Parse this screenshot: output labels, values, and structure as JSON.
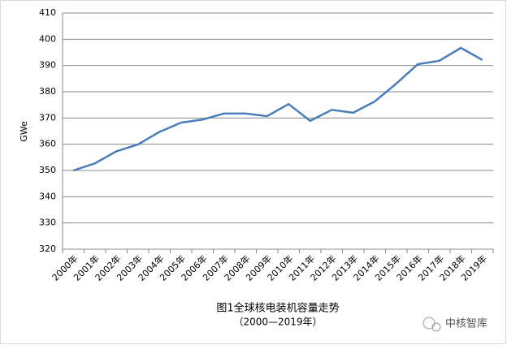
{
  "chart_data": {
    "type": "line",
    "title": "图1全球核电装机容量走势",
    "subtitle": "（2000—2019年）",
    "y_label": "GWe",
    "categories": [
      "2000年",
      "2001年",
      "2002年",
      "2003年",
      "2004年",
      "2005年",
      "2006年",
      "2007年",
      "2008年",
      "2009年",
      "2010年",
      "2011年",
      "2012年",
      "2013年",
      "2014年",
      "2015年",
      "2016年",
      "2017年",
      "2018年",
      "2019年"
    ],
    "series": [
      {
        "name": "GWe",
        "color": "#4a7ebb",
        "values": [
          350,
          352.7,
          357.3,
          359.9,
          364.7,
          368.2,
          369.4,
          371.7,
          371.7,
          370.7,
          375.3,
          368.9,
          373.1,
          372.0,
          376.3,
          383.1,
          390.5,
          391.8,
          396.7,
          392.1
        ]
      }
    ],
    "ylim": [
      320,
      410
    ],
    "yticks": [
      320,
      330,
      340,
      350,
      360,
      370,
      380,
      390,
      400,
      410
    ],
    "grid": true,
    "watermark": "中核智库"
  }
}
